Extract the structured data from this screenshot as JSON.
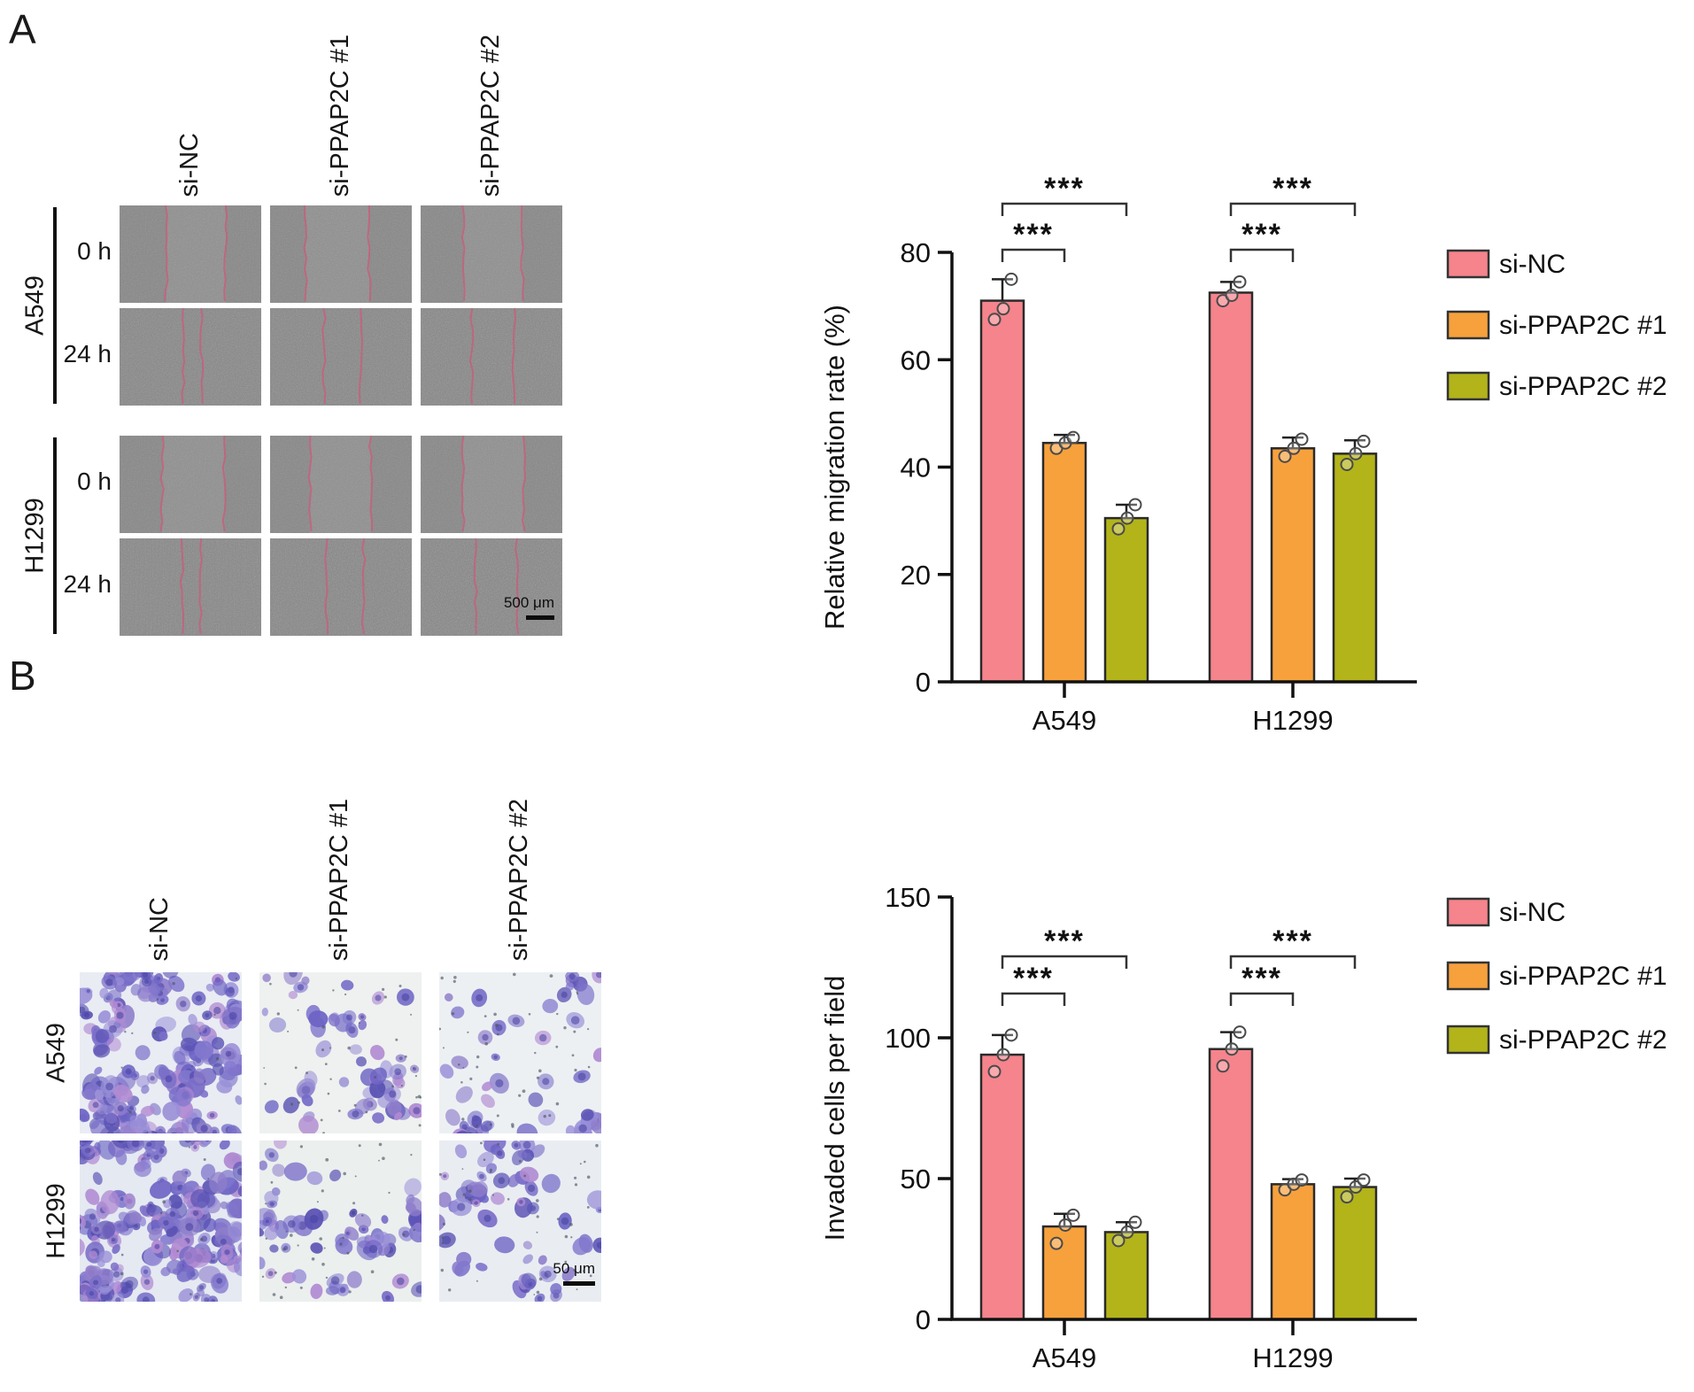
{
  "panel_a": {
    "label": "A",
    "column_labels": [
      "si-NC",
      "si-PPAP2C #1",
      "si-PPAP2C #2"
    ],
    "time_labels": [
      "0 h",
      "24 h",
      "0 h",
      "24 h"
    ],
    "cell_lines": [
      "A549",
      "H1299"
    ],
    "scale_bar": "500 μm",
    "images": [
      {
        "cell_line": "A549",
        "time": "0 h",
        "treatment": "si-NC",
        "wound": [
          0.33,
          0.75
        ]
      },
      {
        "cell_line": "A549",
        "time": "0 h",
        "treatment": "si-PPAP2C #1",
        "wound": [
          0.25,
          0.7
        ]
      },
      {
        "cell_line": "A549",
        "time": "0 h",
        "treatment": "si-PPAP2C #2",
        "wound": [
          0.3,
          0.72
        ]
      },
      {
        "cell_line": "A549",
        "time": "24 h",
        "treatment": "si-NC",
        "wound": [
          0.45,
          0.58
        ]
      },
      {
        "cell_line": "A549",
        "time": "24 h",
        "treatment": "si-PPAP2C #1",
        "wound": [
          0.38,
          0.64
        ]
      },
      {
        "cell_line": "A549",
        "time": "24 h",
        "treatment": "si-PPAP2C #2",
        "wound": [
          0.36,
          0.66
        ]
      },
      {
        "cell_line": "H1299",
        "time": "0 h",
        "treatment": "si-NC",
        "wound": [
          0.3,
          0.74
        ]
      },
      {
        "cell_line": "H1299",
        "time": "0 h",
        "treatment": "si-PPAP2C #1",
        "wound": [
          0.28,
          0.71
        ]
      },
      {
        "cell_line": "H1299",
        "time": "0 h",
        "treatment": "si-PPAP2C #2",
        "wound": [
          0.3,
          0.73
        ]
      },
      {
        "cell_line": "H1299",
        "time": "24 h",
        "treatment": "si-NC",
        "wound": [
          0.44,
          0.57
        ]
      },
      {
        "cell_line": "H1299",
        "time": "24 h",
        "treatment": "si-PPAP2C #1",
        "wound": [
          0.4,
          0.66
        ]
      },
      {
        "cell_line": "H1299",
        "time": "24 h",
        "treatment": "si-PPAP2C #2",
        "wound": [
          0.39,
          0.68
        ]
      }
    ]
  },
  "panel_b": {
    "label": "B",
    "column_labels": [
      "si-NC",
      "si-PPAP2C #1",
      "si-PPAP2C #2"
    ],
    "row_labels": [
      "A549",
      "H1299"
    ],
    "scale_bar": "50 μm",
    "images": [
      {
        "cell_line": "A549",
        "treatment": "si-NC",
        "cells": 60,
        "clusters": 16,
        "speckles": 12,
        "bg": "#e9ecf3"
      },
      {
        "cell_line": "A549",
        "treatment": "si-PPAP2C #1",
        "cells": 30,
        "clusters": 3,
        "speckles": 40,
        "bg": "#eef1ef"
      },
      {
        "cell_line": "A549",
        "treatment": "si-PPAP2C #2",
        "cells": 27,
        "clusters": 3,
        "speckles": 45,
        "bg": "#edf0f3"
      },
      {
        "cell_line": "H1299",
        "treatment": "si-NC",
        "cells": 70,
        "clusters": 20,
        "speckles": 10,
        "bg": "#e5e9f1"
      },
      {
        "cell_line": "H1299",
        "treatment": "si-PPAP2C #1",
        "cells": 36,
        "clusters": 4,
        "speckles": 40,
        "bg": "#ebefee"
      },
      {
        "cell_line": "H1299",
        "treatment": "si-PPAP2C #2",
        "cells": 34,
        "clusters": 4,
        "speckles": 42,
        "bg": "#e9edf2"
      }
    ]
  },
  "chart_data": [
    {
      "type": "bar",
      "title": "",
      "ylabel": "Relative migration rate (%)",
      "xlabel": "",
      "categories": [
        "A549",
        "H1299"
      ],
      "ylim": [
        0,
        80
      ],
      "ytick_step": 20,
      "grid": false,
      "legend_position": "right",
      "series": [
        {
          "name": "si-NC",
          "color": "#F5848C",
          "values": [
            71,
            72.5
          ],
          "errors": [
            4,
            2
          ],
          "points": [
            [
              67.5,
              69.5,
              75
            ],
            [
              71,
              72,
              74.5
            ]
          ]
        },
        {
          "name": "si-PPAP2C #1",
          "color": "#F7A13D",
          "values": [
            44.5,
            43.5
          ],
          "errors": [
            1.5,
            2
          ],
          "points": [
            [
              43.5,
              44.5,
              45.5
            ],
            [
              42,
              43.5,
              45.2
            ]
          ]
        },
        {
          "name": "si-PPAP2C #2",
          "color": "#B3B41A",
          "values": [
            30.5,
            42.5
          ],
          "errors": [
            2.5,
            2.5
          ],
          "points": [
            [
              28.5,
              30.5,
              33
            ],
            [
              40.5,
              42.5,
              44.8
            ]
          ]
        }
      ],
      "significance": [
        {
          "group": 0,
          "from": 0,
          "to": 1,
          "label": "***"
        },
        {
          "group": 0,
          "from": 0,
          "to": 2,
          "label": "***"
        },
        {
          "group": 1,
          "from": 0,
          "to": 1,
          "label": "***"
        },
        {
          "group": 1,
          "from": 0,
          "to": 2,
          "label": "***"
        }
      ]
    },
    {
      "type": "bar",
      "title": "",
      "ylabel": "Invaded cells per field",
      "xlabel": "",
      "categories": [
        "A549",
        "H1299"
      ],
      "ylim": [
        0,
        150
      ],
      "ytick_step": 50,
      "grid": false,
      "legend_position": "right",
      "series": [
        {
          "name": "si-NC",
          "color": "#F5848C",
          "values": [
            94,
            96
          ],
          "errors": [
            7,
            6
          ],
          "points": [
            [
              88,
              94,
              101
            ],
            [
              90,
              96,
              102
            ]
          ]
        },
        {
          "name": "si-PPAP2C #1",
          "color": "#F7A13D",
          "values": [
            33,
            48
          ],
          "errors": [
            4.5,
            1.8
          ],
          "points": [
            [
              27,
              33.5,
              37
            ],
            [
              46,
              48,
              49.5
            ]
          ]
        },
        {
          "name": "si-PPAP2C #2",
          "color": "#B3B41A",
          "values": [
            31,
            47
          ],
          "errors": [
            3.5,
            3
          ],
          "points": [
            [
              28,
              31,
              34.5
            ],
            [
              43.5,
              47,
              49.5
            ]
          ]
        }
      ],
      "significance": [
        {
          "group": 0,
          "from": 0,
          "to": 1,
          "label": "***"
        },
        {
          "group": 0,
          "from": 0,
          "to": 2,
          "label": "***"
        },
        {
          "group": 1,
          "from": 0,
          "to": 1,
          "label": "***"
        },
        {
          "group": 1,
          "from": 0,
          "to": 2,
          "label": "***"
        }
      ]
    }
  ],
  "colors": {
    "wound_line": "#C4607C",
    "axis": "#111111",
    "cell_stain_palette": [
      "#5a52b4",
      "#6c63c4",
      "#8177cd",
      "#9a90d8",
      "#7b6fc8",
      "#b08ad2",
      "#8f7ecb"
    ],
    "cell_nucleus": "#463fa0"
  }
}
